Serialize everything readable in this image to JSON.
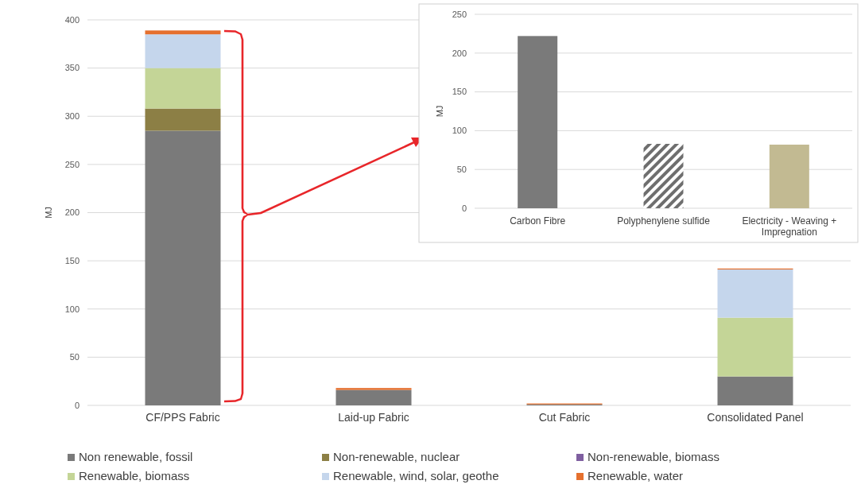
{
  "chart_data": [
    {
      "type": "bar",
      "stacked": true,
      "ylabel": "MJ",
      "categories": [
        "CF/PPS Fabric",
        "Laid-up Fabric",
        "Cut Fabric",
        "Consolidated Panel"
      ],
      "ylim": [
        0,
        400
      ],
      "yticks": [
        0,
        50,
        100,
        150,
        200,
        250,
        300,
        350,
        400
      ],
      "grid": "y",
      "legend": "bottom",
      "series": [
        {
          "name": "Non renewable, fossil",
          "color": "#7a7a7a",
          "values": [
            285,
            16,
            1,
            30
          ]
        },
        {
          "name": "Non-renewable, nuclear",
          "color": "#8c7f45",
          "values": [
            23,
            0,
            0,
            0
          ]
        },
        {
          "name": "Non-renewable, biomass",
          "color": "#7f5fa0",
          "values": [
            0,
            0,
            0,
            0
          ]
        },
        {
          "name": "Renewable, biomass",
          "color": "#c4d597",
          "values": [
            42,
            0,
            0,
            61
          ]
        },
        {
          "name": "Renewable, wind, solar, geothe",
          "color": "#c5d6ec",
          "values": [
            35,
            0,
            0,
            50
          ]
        },
        {
          "name": "Renewable, water",
          "color": "#e5702e",
          "values": [
            4,
            2,
            1,
            1
          ]
        }
      ]
    },
    {
      "type": "bar",
      "ylabel": "MJ",
      "categories": [
        "Carbon Fibre",
        "Polyphenylene sulfide",
        "Electricity - Weaving + Impregnation"
      ],
      "values": [
        222,
        83,
        82
      ],
      "colors": [
        "#7a7a7a",
        "#6e6e6e",
        "#c2ba92"
      ],
      "ylim": [
        0,
        250
      ],
      "yticks": [
        0,
        50,
        100,
        150,
        200,
        250
      ],
      "grid": "y"
    }
  ]
}
